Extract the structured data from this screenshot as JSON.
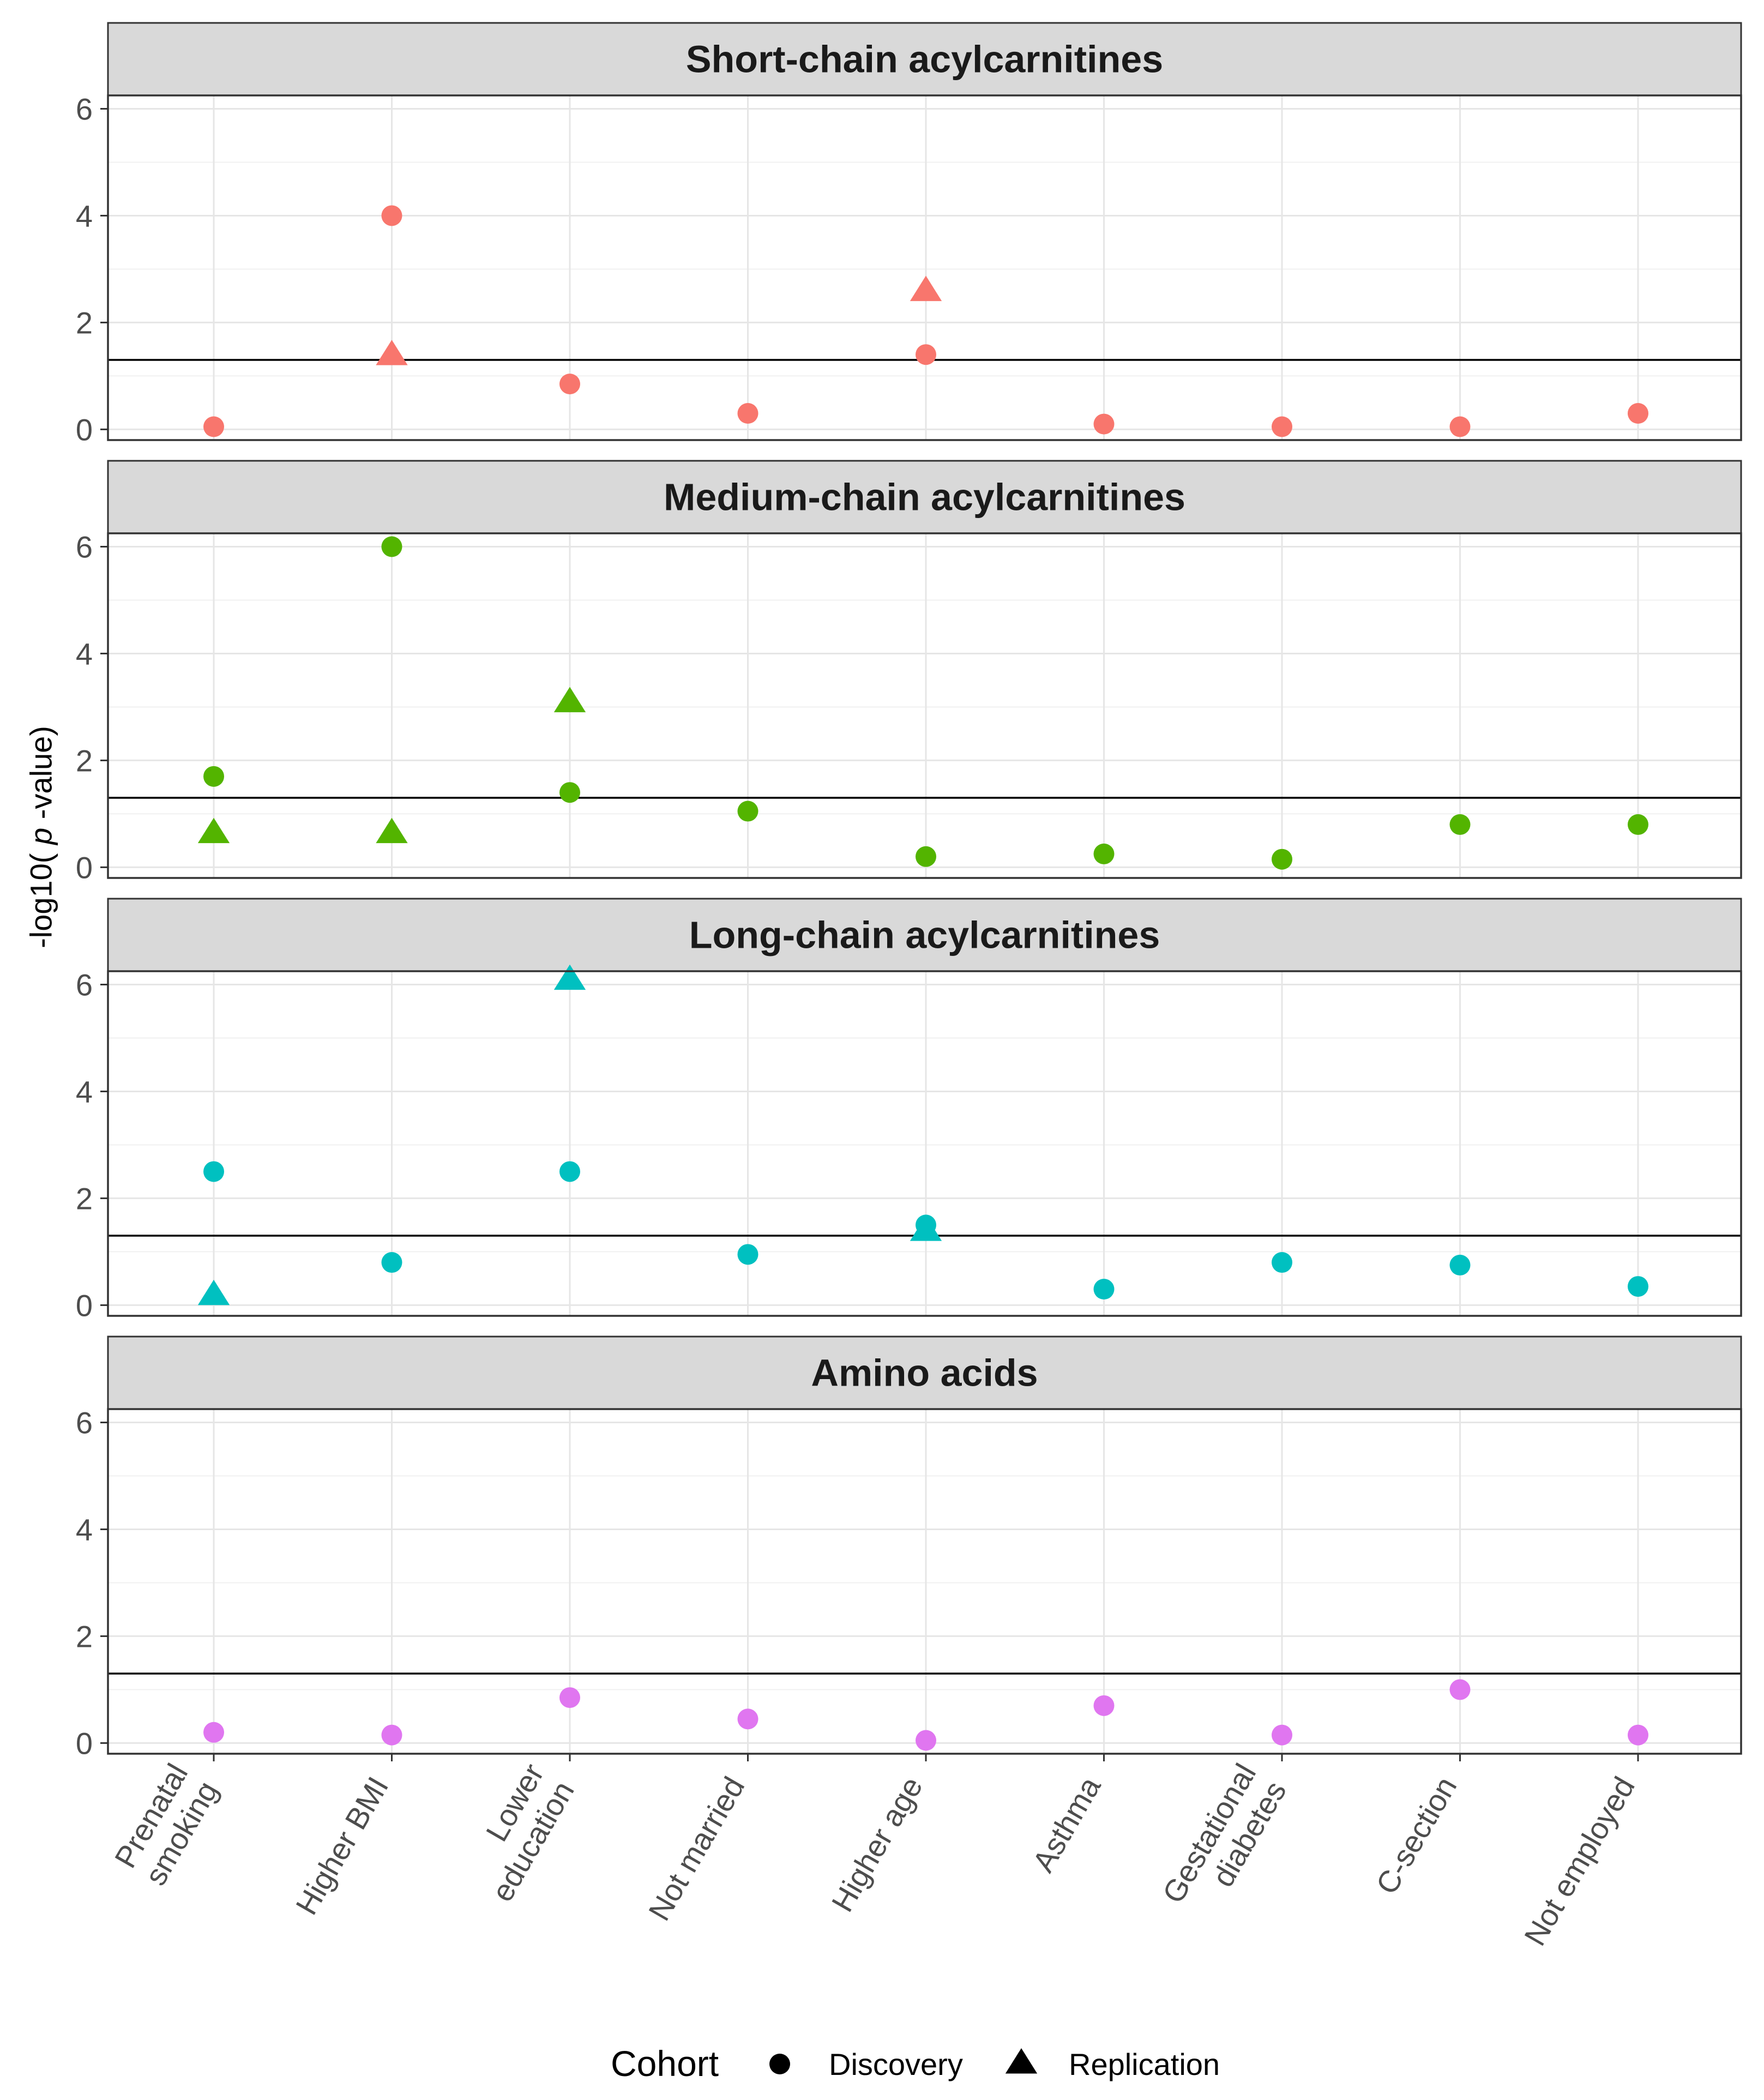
{
  "chart_data": {
    "type": "scatter",
    "ylabel_prefix": "-log10( ",
    "ylabel_italic": "p",
    "ylabel_suffix": " -value)",
    "y_ticks": [
      0,
      2,
      4,
      6
    ],
    "ylim": [
      -0.2,
      6.25
    ],
    "threshold": 1.3,
    "categories": [
      "Prenatal smoking",
      "Higher BMI",
      "Lower education",
      "Not married",
      "Higher age",
      "Asthma",
      "Gestational diabetes",
      "C-section",
      "Not employed"
    ],
    "category_labels": [
      [
        "Prenatal",
        "smoking"
      ],
      [
        "Higher BMI"
      ],
      [
        "Lower",
        "education"
      ],
      [
        "Not married"
      ],
      [
        "Higher age"
      ],
      [
        "Asthma"
      ],
      [
        "Gestational",
        "diabetes"
      ],
      [
        "C-section"
      ],
      [
        "Not employed"
      ]
    ],
    "legend": {
      "title": "Cohort",
      "entries": [
        {
          "label": "Discovery",
          "shape": "circle"
        },
        {
          "label": "Replication",
          "shape": "triangle"
        }
      ],
      "position": "bottom"
    },
    "panels": [
      {
        "title": "Short-chain acylcarnitines",
        "color": "#F8766D",
        "discovery": [
          0.05,
          4.0,
          0.85,
          0.3,
          1.4,
          0.1,
          0.05,
          0.05,
          0.3
        ],
        "replication": [
          null,
          1.4,
          null,
          null,
          2.6,
          null,
          null,
          null,
          null
        ]
      },
      {
        "title": "Medium-chain acylcarnitines",
        "color": "#53B400",
        "discovery": [
          1.7,
          6.0,
          1.4,
          1.05,
          0.2,
          0.25,
          0.15,
          0.8,
          0.8
        ],
        "replication": [
          0.65,
          0.65,
          3.1,
          null,
          null,
          null,
          null,
          null,
          null
        ]
      },
      {
        "title": "Long-chain acylcarnitines",
        "color": "#00C0C0",
        "discovery": [
          2.5,
          0.8,
          2.5,
          0.95,
          1.5,
          0.3,
          0.8,
          0.75,
          0.35
        ],
        "replication": [
          0.2,
          null,
          6.1,
          null,
          1.4,
          null,
          null,
          null,
          null
        ]
      },
      {
        "title": "Amino acids",
        "color": "#E076F0",
        "discovery": [
          0.2,
          0.15,
          0.85,
          0.45,
          0.05,
          0.7,
          0.15,
          1.0,
          0.15
        ],
        "replication": [
          null,
          null,
          null,
          null,
          null,
          null,
          null,
          null,
          null
        ]
      }
    ]
  }
}
